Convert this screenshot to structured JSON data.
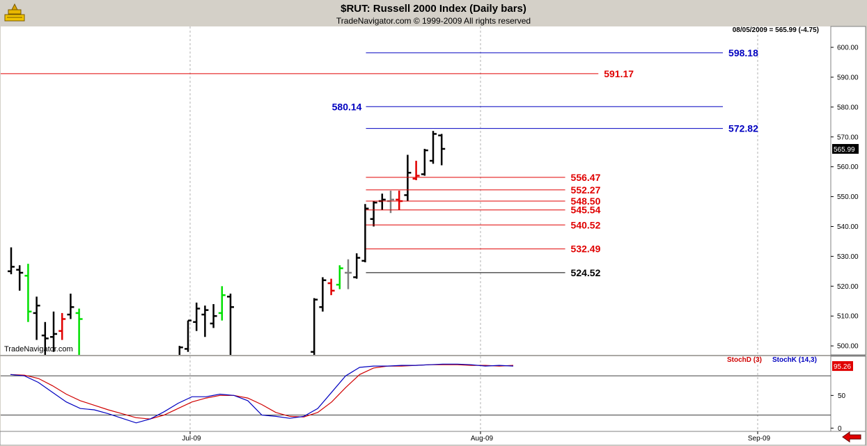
{
  "header": {
    "title": "$RUT:  Russell 2000 Index  (Daily bars)",
    "subtitle": "TradeNavigator.com © 1999-2009 All rights reserved",
    "watermark": "TradeNavigator.com",
    "status": "08/05/2009 = 565.99 (-4.75)"
  },
  "colors": {
    "background": "#ffffff",
    "frame": "#d4d0c8",
    "up_bar": "#00e000",
    "down_bar": "#e00000",
    "neutral_bar": "#808080",
    "bar": "#000000",
    "blue_level": "#0000c0",
    "red_level": "#e00000",
    "black_level": "#000000",
    "stoch_d": "#d00000",
    "stoch_k": "#0000c0"
  },
  "chart_data": {
    "type": "ohlc",
    "title": "$RUT:  Russell 2000 Index  (Daily bars)",
    "ylim": [
      497,
      607
    ],
    "y_ticks": [
      500,
      510,
      520,
      530,
      540,
      550,
      560,
      570,
      580,
      590,
      600
    ],
    "y_tick_labels": [
      "500.00",
      "510.00",
      "520.00",
      "530.00",
      "540.00",
      "550.00",
      "560.00",
      "570.00",
      "580.00",
      "590.00",
      "600.00"
    ],
    "x_labels": [
      "Jul-09",
      "Aug-09",
      "Sep-09"
    ],
    "last_price_label": "565.99",
    "bars": [
      {
        "o": 525.0,
        "h": 533.0,
        "l": 524.0,
        "c": 526.5,
        "color": "black"
      },
      {
        "o": 525.5,
        "h": 527.0,
        "l": 518.5,
        "c": 524.5,
        "color": "black"
      },
      {
        "o": 523.5,
        "h": 527.5,
        "l": 508.0,
        "c": 511.5,
        "color": "green"
      },
      {
        "o": 511.0,
        "h": 516.5,
        "l": 502.0,
        "c": 513.5,
        "color": "black"
      },
      {
        "o": 503.5,
        "h": 508.0,
        "l": 497.0,
        "c": 502.5,
        "color": "black"
      },
      {
        "o": 503.0,
        "h": 511.5,
        "l": 498.0,
        "c": 504.0,
        "color": "black"
      },
      {
        "o": 505.0,
        "h": 511.0,
        "l": 502.0,
        "c": 509.0,
        "color": "red"
      },
      {
        "o": 510.5,
        "h": 517.5,
        "l": 509.0,
        "c": 513.0,
        "color": "black"
      },
      {
        "o": 511.0,
        "h": 512.5,
        "l": 497.0,
        "c": 509.0,
        "color": "green"
      },
      {
        "o": 496.0,
        "h": 500.0,
        "l": 495.0,
        "c": 499.5,
        "color": "black"
      },
      {
        "o": 499.0,
        "h": 508.5,
        "l": 498.0,
        "c": 508.5,
        "color": "black"
      },
      {
        "o": 508.0,
        "h": 514.5,
        "l": 505.0,
        "c": 512.5,
        "color": "black"
      },
      {
        "o": 510.5,
        "h": 513.5,
        "l": 503.0,
        "c": 512.0,
        "color": "black"
      },
      {
        "o": 507.5,
        "h": 514.0,
        "l": 506.0,
        "c": 510.0,
        "color": "black"
      },
      {
        "o": 511.0,
        "h": 520.0,
        "l": 508.5,
        "c": 517.0,
        "color": "green"
      },
      {
        "o": 516.5,
        "h": 517.5,
        "l": 497.0,
        "c": 513.0,
        "color": "black"
      },
      {
        "o": 498.0,
        "h": 516.0,
        "l": 497.0,
        "c": 515.5,
        "color": "black"
      },
      {
        "o": 513.0,
        "h": 523.0,
        "l": 511.5,
        "c": 522.0,
        "color": "black"
      },
      {
        "o": 521.0,
        "h": 522.5,
        "l": 517.0,
        "c": 518.5,
        "color": "red"
      },
      {
        "o": 520.5,
        "h": 527.0,
        "l": 519.0,
        "c": 526.0,
        "color": "green"
      },
      {
        "o": 524.5,
        "h": 529.0,
        "l": 519.0,
        "c": 524.5,
        "color": "gray"
      },
      {
        "o": 523.0,
        "h": 531.0,
        "l": 522.5,
        "c": 529.5,
        "color": "black"
      },
      {
        "o": 528.5,
        "h": 547.5,
        "l": 528.0,
        "c": 546.0,
        "color": "black"
      },
      {
        "o": 542.5,
        "h": 548.5,
        "l": 540.0,
        "c": 548.0,
        "color": "black"
      },
      {
        "o": 548.5,
        "h": 551.0,
        "l": 545.5,
        "c": 549.0,
        "color": "black"
      },
      {
        "o": 548.5,
        "h": 552.0,
        "l": 544.5,
        "c": 549.0,
        "color": "gray"
      },
      {
        "o": 549.0,
        "h": 552.0,
        "l": 545.5,
        "c": 548.5,
        "color": "red"
      },
      {
        "o": 550.5,
        "h": 564.0,
        "l": 548.5,
        "c": 558.0,
        "color": "black"
      },
      {
        "o": 556.0,
        "h": 562.0,
        "l": 555.5,
        "c": 557.0,
        "color": "red"
      },
      {
        "o": 557.5,
        "h": 566.0,
        "l": 557.0,
        "c": 565.5,
        "color": "black"
      },
      {
        "o": 562.0,
        "h": 572.0,
        "l": 561.0,
        "c": 571.0,
        "color": "black"
      },
      {
        "o": 570.5,
        "h": 571.0,
        "l": 560.5,
        "c": 565.99,
        "color": "black"
      }
    ],
    "levels": [
      {
        "value": 598.18,
        "label": "598.18",
        "color": "blue",
        "x0": 0.44,
        "x1": 0.87,
        "label_side": "right"
      },
      {
        "value": 591.17,
        "label": "591.17",
        "color": "red",
        "x0": 0.0,
        "x1": 0.72,
        "label_side": "right"
      },
      {
        "value": 580.14,
        "label": "580.14",
        "color": "blue",
        "x0": 0.44,
        "x1": 0.87,
        "label_side": "left"
      },
      {
        "value": 572.82,
        "label": "572.82",
        "color": "blue",
        "x0": 0.44,
        "x1": 0.87,
        "label_side": "right"
      },
      {
        "value": 556.47,
        "label": "556.47",
        "color": "red",
        "x0": 0.44,
        "x1": 0.68,
        "label_side": "right"
      },
      {
        "value": 552.27,
        "label": "552.27",
        "color": "red",
        "x0": 0.44,
        "x1": 0.68,
        "label_side": "right"
      },
      {
        "value": 548.5,
        "label": "548.50",
        "color": "red",
        "x0": 0.44,
        "x1": 0.68,
        "label_side": "right"
      },
      {
        "value": 545.54,
        "label": "545.54",
        "color": "red",
        "x0": 0.44,
        "x1": 0.68,
        "label_side": "right"
      },
      {
        "value": 540.52,
        "label": "540.52",
        "color": "red",
        "x0": 0.44,
        "x1": 0.68,
        "label_side": "right"
      },
      {
        "value": 532.49,
        "label": "532.49",
        "color": "red",
        "x0": 0.44,
        "x1": 0.68,
        "label_side": "right"
      },
      {
        "value": 524.52,
        "label": "524.52",
        "color": "black",
        "x0": 0.44,
        "x1": 0.68,
        "label_side": "right"
      }
    ],
    "stochastic": {
      "legend_d": "StochD (3)",
      "legend_k": "StochK (14,3)",
      "last_label": "95.26",
      "ylim": [
        -5,
        110
      ],
      "y_ticks": [
        0,
        50
      ],
      "ref_lines": [
        80,
        20
      ],
      "k_values": [
        82,
        80,
        70,
        55,
        40,
        30,
        28,
        22,
        15,
        8,
        14,
        25,
        38,
        48,
        48,
        52,
        50,
        42,
        20,
        18,
        15,
        18,
        30,
        55,
        80,
        93,
        95,
        95,
        96,
        96,
        97,
        98,
        98,
        97,
        95,
        96,
        95
      ],
      "d_values": [
        82,
        81,
        76,
        65,
        52,
        42,
        35,
        28,
        22,
        16,
        14,
        20,
        30,
        40,
        46,
        50,
        50,
        46,
        36,
        24,
        18,
        17,
        24,
        40,
        62,
        82,
        92,
        95,
        95,
        96,
        97,
        97,
        97,
        96,
        96,
        95,
        96
      ]
    }
  }
}
